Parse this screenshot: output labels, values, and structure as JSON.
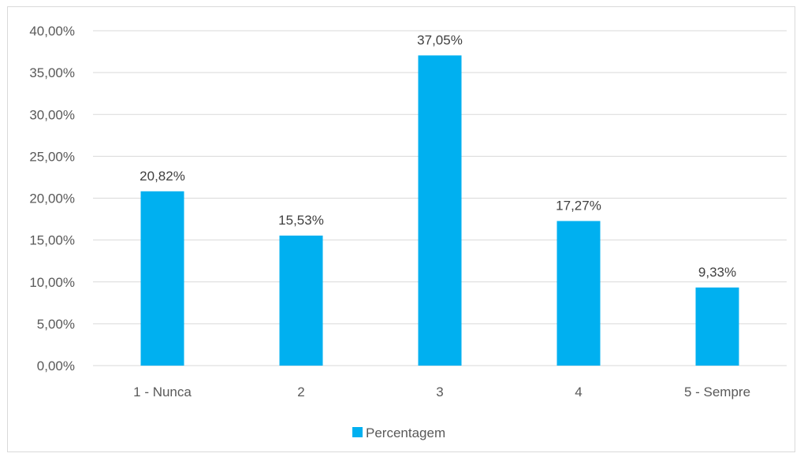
{
  "chart_data": {
    "type": "bar",
    "categories": [
      "1 - Nunca",
      "2",
      "3",
      "4",
      "5 - Sempre"
    ],
    "series": [
      {
        "name": "Percentagem",
        "values": [
          20.82,
          15.53,
          37.05,
          17.27,
          9.33
        ],
        "color": "#00b0f0"
      }
    ],
    "data_labels": [
      "20,82%",
      "15,53%",
      "37,05%",
      "17,27%",
      "9,33%"
    ],
    "y_ticks": [
      "0,00%",
      "5,00%",
      "10,00%",
      "15,00%",
      "20,00%",
      "25,00%",
      "30,00%",
      "35,00%",
      "40,00%"
    ],
    "ylim": [
      0,
      40
    ],
    "title": "",
    "xlabel": "",
    "ylabel": "",
    "grid": true,
    "legend": "bottom",
    "gridline_color": "#d9d9d9"
  }
}
